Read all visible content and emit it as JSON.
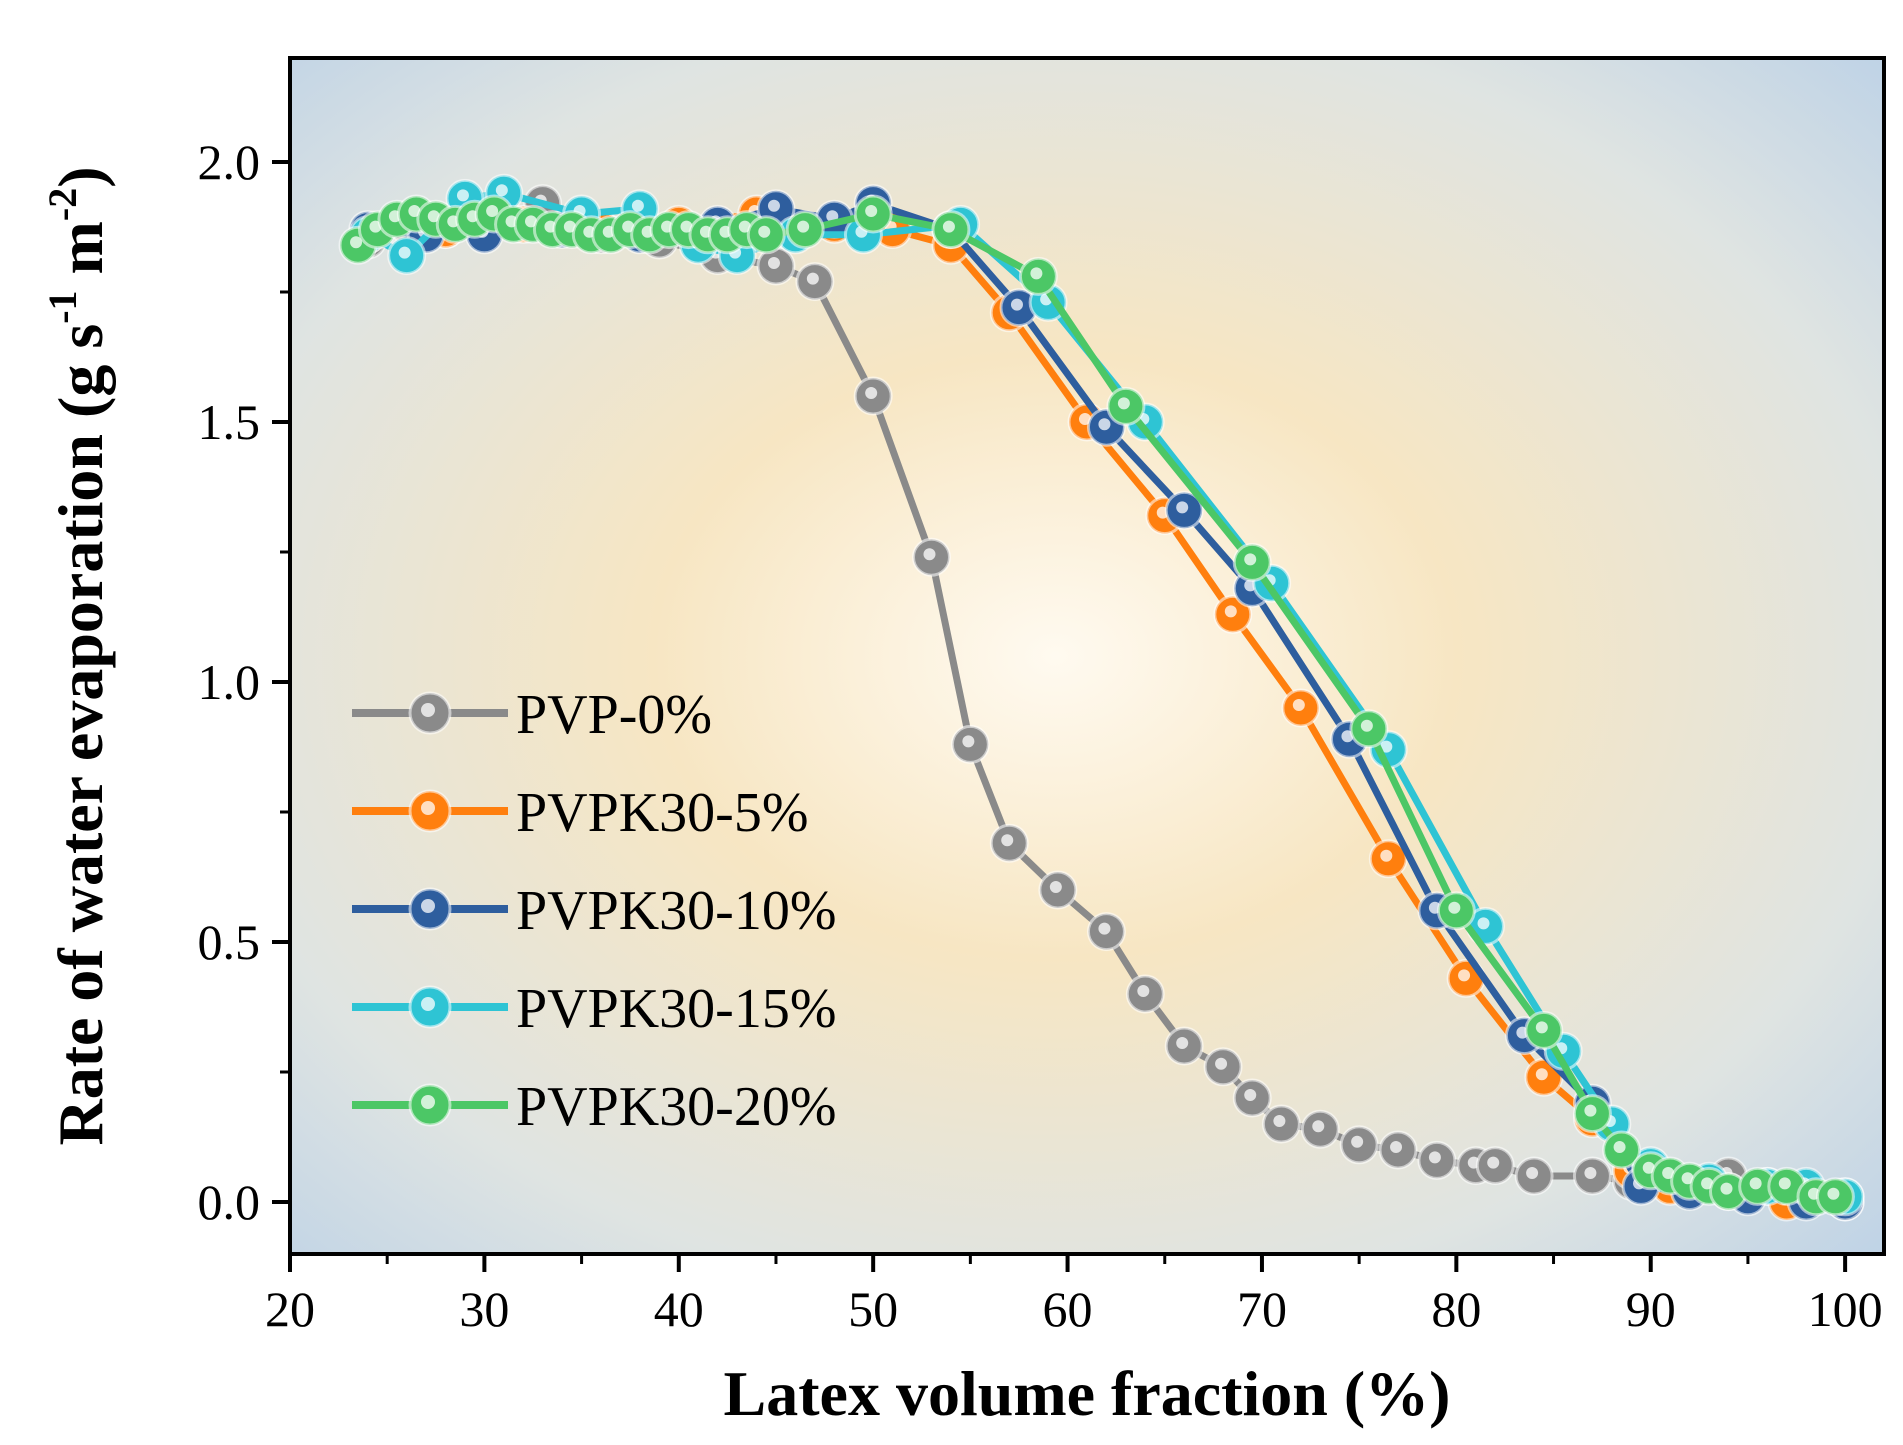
{
  "chart_data": {
    "type": "line",
    "title": "",
    "xlabel": "Latex volume fraction (%)",
    "ylabel": {
      "base": "Rate of water evaporation (g s",
      "sup1": "-1",
      "mid": " m",
      "sup2": "-2",
      "end": ")"
    },
    "xlim": [
      20,
      102
    ],
    "ylim": [
      -0.1,
      2.2
    ],
    "xticks": [
      20,
      30,
      40,
      50,
      60,
      70,
      80,
      90,
      100
    ],
    "xtick_labels": [
      "20",
      "30",
      "40",
      "50",
      "60",
      "70",
      "80",
      "90",
      "100"
    ],
    "yticks": [
      0.0,
      0.5,
      1.0,
      1.5,
      2.0
    ],
    "ytick_labels": [
      "0.0",
      "0.5",
      "1.0",
      "1.5",
      "2.0"
    ],
    "grid": false,
    "legend_position": "lower-left",
    "series": [
      {
        "name": "PVP-0%",
        "color": "#8a8a8a",
        "x": [
          24,
          26,
          28,
          30,
          33,
          36,
          39,
          42,
          45,
          47,
          50,
          53,
          55,
          57,
          59.5,
          62,
          64,
          66,
          68,
          69.5,
          71,
          73,
          75,
          77,
          79,
          81,
          82,
          84,
          87,
          89,
          92,
          94,
          96,
          98,
          100
        ],
        "y": [
          1.85,
          1.88,
          1.87,
          1.88,
          1.92,
          1.86,
          1.85,
          1.82,
          1.8,
          1.77,
          1.55,
          1.24,
          0.88,
          0.69,
          0.6,
          0.52,
          0.4,
          0.3,
          0.26,
          0.2,
          0.15,
          0.14,
          0.11,
          0.1,
          0.08,
          0.07,
          0.07,
          0.05,
          0.05,
          0.04,
          0.03,
          0.05,
          0.03,
          0.02,
          0.01
        ]
      },
      {
        "name": "PVPK30-5%",
        "color": "#ff7f0e",
        "x": [
          24,
          28,
          32,
          36,
          40,
          44,
          48,
          51,
          54,
          57,
          61,
          65,
          68.5,
          72,
          76.5,
          80.5,
          84.5,
          87,
          89,
          91,
          94,
          97,
          100
        ],
        "y": [
          1.86,
          1.87,
          1.88,
          1.87,
          1.88,
          1.9,
          1.88,
          1.87,
          1.84,
          1.71,
          1.5,
          1.32,
          1.13,
          0.95,
          0.66,
          0.43,
          0.24,
          0.16,
          0.06,
          0.03,
          0.02,
          0.0,
          0.0
        ]
      },
      {
        "name": "PVPK30-10%",
        "color": "#2e5e9e",
        "x": [
          24,
          27,
          30,
          34,
          38,
          42,
          45,
          48,
          50,
          54,
          57.5,
          62,
          66,
          69.5,
          74.5,
          79,
          83.5,
          87,
          89.5,
          92,
          95,
          98,
          100
        ],
        "y": [
          1.87,
          1.86,
          1.86,
          1.87,
          1.86,
          1.88,
          1.91,
          1.89,
          1.92,
          1.87,
          1.72,
          1.49,
          1.33,
          1.18,
          0.89,
          0.56,
          0.32,
          0.19,
          0.03,
          0.02,
          0.01,
          0.0,
          0.0
        ]
      },
      {
        "name": "PVPK30-15%",
        "color": "#2ec4d4",
        "x": [
          24,
          26,
          29,
          31,
          35,
          38,
          41,
          43,
          46,
          49.5,
          54.5,
          59,
          64,
          70.5,
          76.5,
          81.5,
          85.5,
          88,
          90,
          93,
          96,
          98,
          100
        ],
        "y": [
          1.86,
          1.82,
          1.93,
          1.94,
          1.9,
          1.91,
          1.84,
          1.82,
          1.86,
          1.86,
          1.88,
          1.73,
          1.5,
          1.19,
          0.87,
          0.53,
          0.29,
          0.15,
          0.07,
          0.04,
          0.03,
          0.03,
          0.01
        ]
      },
      {
        "name": "PVPK30-20%",
        "color": "#4cc766",
        "x": [
          23.5,
          24.5,
          25.5,
          26.5,
          27.5,
          28.5,
          29.5,
          30.5,
          31.5,
          32.5,
          33.5,
          34.5,
          35.5,
          36.5,
          37.5,
          38.5,
          39.5,
          40.5,
          41.5,
          42.5,
          43.5,
          44.5,
          46.5,
          50,
          54,
          58.5,
          63,
          69.5,
          75.5,
          80,
          84.5,
          87,
          88.5,
          90,
          91,
          92,
          93,
          94,
          95.5,
          97,
          98.5,
          99.5
        ],
        "y": [
          1.84,
          1.87,
          1.89,
          1.9,
          1.89,
          1.88,
          1.89,
          1.9,
          1.88,
          1.88,
          1.87,
          1.87,
          1.86,
          1.86,
          1.87,
          1.86,
          1.87,
          1.87,
          1.86,
          1.86,
          1.87,
          1.86,
          1.87,
          1.9,
          1.87,
          1.78,
          1.53,
          1.23,
          0.91,
          0.56,
          0.33,
          0.17,
          0.1,
          0.06,
          0.05,
          0.04,
          0.03,
          0.02,
          0.03,
          0.03,
          0.01,
          0.01
        ]
      }
    ]
  }
}
